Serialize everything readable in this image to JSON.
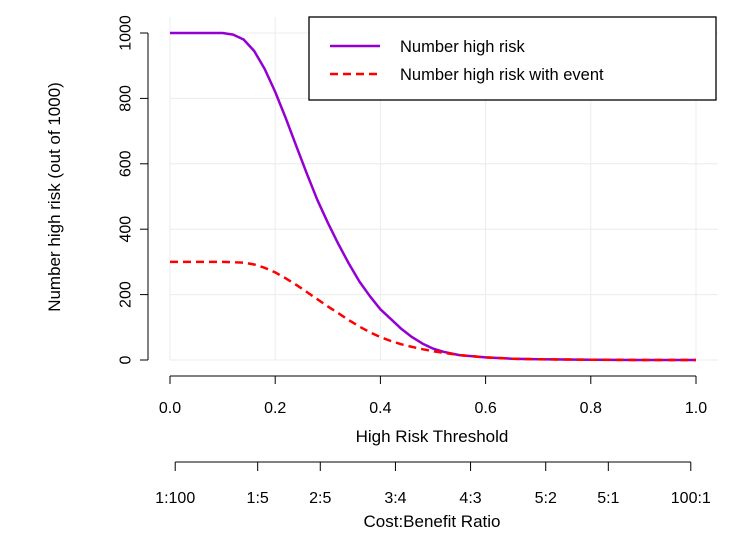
{
  "chart_data": {
    "type": "line",
    "title": "",
    "xlabel": "High Risk Threshold",
    "ylabel": "Number high risk (out of 1000)",
    "xlim": [
      0,
      1
    ],
    "ylim": [
      0,
      1000
    ],
    "x_ticks": [
      "0.0",
      "0.2",
      "0.4",
      "0.6",
      "0.8",
      "1.0"
    ],
    "y_ticks": [
      "0",
      "200",
      "400",
      "600",
      "800",
      "1000"
    ],
    "grid": true,
    "legend_position": "top-right",
    "secondary_axis": {
      "label": "Cost:Benefit Ratio",
      "ticks": [
        {
          "label": "1:100",
          "x": 0.0099
        },
        {
          "label": "1:5",
          "x": 0.1667
        },
        {
          "label": "2:5",
          "x": 0.2857
        },
        {
          "label": "3:4",
          "x": 0.4286
        },
        {
          "label": "4:3",
          "x": 0.5714
        },
        {
          "label": "5:2",
          "x": 0.7143
        },
        {
          "label": "5:1",
          "x": 0.8333
        },
        {
          "label": "100:1",
          "x": 0.9901
        }
      ]
    },
    "series": [
      {
        "name": "Number high risk",
        "color": "#9400d3",
        "style": "solid",
        "x": [
          0,
          0.05,
          0.1,
          0.12,
          0.14,
          0.16,
          0.18,
          0.2,
          0.22,
          0.24,
          0.26,
          0.28,
          0.3,
          0.32,
          0.34,
          0.36,
          0.38,
          0.4,
          0.42,
          0.44,
          0.46,
          0.48,
          0.5,
          0.52,
          0.55,
          0.6,
          0.65,
          0.7,
          0.8,
          0.9,
          1.0
        ],
        "y": [
          1000,
          1000,
          1000,
          995,
          980,
          945,
          890,
          820,
          740,
          655,
          570,
          490,
          420,
          355,
          295,
          240,
          195,
          155,
          125,
          95,
          70,
          50,
          35,
          25,
          15,
          8,
          4,
          2,
          1,
          0,
          0
        ]
      },
      {
        "name": "Number high risk with event",
        "color": "#ff0000",
        "style": "dashed",
        "x": [
          0,
          0.05,
          0.1,
          0.14,
          0.16,
          0.18,
          0.2,
          0.22,
          0.24,
          0.26,
          0.28,
          0.3,
          0.32,
          0.34,
          0.36,
          0.38,
          0.4,
          0.42,
          0.44,
          0.46,
          0.48,
          0.5,
          0.55,
          0.6,
          0.65,
          0.7,
          0.8,
          0.9,
          1.0
        ],
        "y": [
          300,
          300,
          300,
          298,
          292,
          282,
          268,
          250,
          230,
          208,
          186,
          164,
          143,
          122,
          102,
          85,
          70,
          58,
          48,
          40,
          33,
          27,
          15,
          8,
          4,
          2,
          1,
          0,
          0
        ]
      }
    ]
  }
}
